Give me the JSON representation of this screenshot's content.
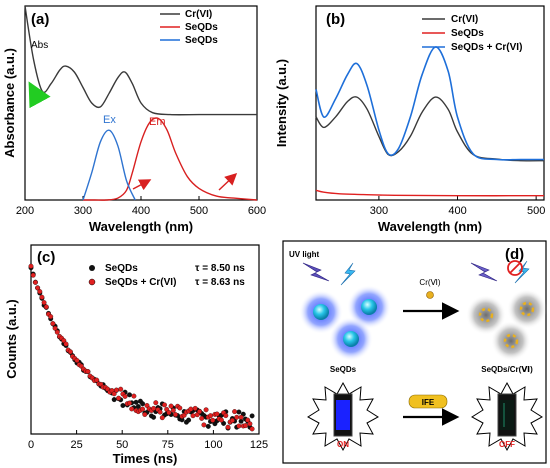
{
  "panels": {
    "a": {
      "label": "(a)",
      "abs_label": "Abs",
      "ex_label": "Ex",
      "em_label": "Em",
      "legend": [
        "Cr(VI)",
        "SeQDs",
        "SeQDs"
      ]
    },
    "b": {
      "label": "(b)",
      "legend": [
        "Cr(VI)",
        "SeQDs",
        "SeQDs + Cr(VI)"
      ]
    },
    "c": {
      "label": "(c)",
      "legend": [
        {
          "name": "SeQDs",
          "tau": "τ = 8.50 ns"
        },
        {
          "name": "SeQDs + Cr(VI)",
          "tau": "τ = 8.63 ns"
        }
      ]
    },
    "d": {
      "label": "(d)",
      "uv_label": "UV light",
      "cr_label": "Cr(Ⅵ)",
      "left_label": "SeQDs",
      "right_label": "SeQDs/Cr(Ⅵ)",
      "ife_label": "IFE",
      "on_label": "ON",
      "off_label": "OFF"
    }
  },
  "colors": {
    "cr": "#3a3a3a",
    "seqds": "#e02020",
    "mix": "#1e6fd9",
    "ex": "#2f74d0",
    "em": "#d82020"
  },
  "chart_data": [
    {
      "panel": "a",
      "type": "line",
      "xlabel": "Wavelength (nm)",
      "ylabel": "Absorbance (a.u.)",
      "xlim": [
        200,
        600
      ],
      "xticks": [
        200,
        300,
        400,
        500,
        600
      ],
      "series": [
        {
          "name": "Cr(VI)",
          "x": [
            200,
            215,
            230,
            245,
            260,
            270,
            285,
            300,
            315,
            330,
            345,
            360,
            372,
            385,
            400,
            420,
            450,
            500,
            550,
            600
          ],
          "y": [
            1.0,
            0.72,
            0.56,
            0.6,
            0.67,
            0.69,
            0.66,
            0.58,
            0.5,
            0.48,
            0.55,
            0.63,
            0.66,
            0.6,
            0.5,
            0.45,
            0.44,
            0.44,
            0.44,
            0.44
          ]
        },
        {
          "name": "SeQDs",
          "x": [
            300,
            320,
            340,
            360,
            375,
            385,
            400,
            415,
            430,
            445,
            460,
            480,
            500,
            530,
            560,
            600
          ],
          "y": [
            0.0,
            0.0,
            0.0,
            0.01,
            0.05,
            0.14,
            0.3,
            0.4,
            0.42,
            0.36,
            0.24,
            0.12,
            0.06,
            0.02,
            0.01,
            0.0
          ]
        },
        {
          "name": "SeQDs",
          "x": [
            300,
            315,
            330,
            345,
            360,
            375,
            390
          ],
          "y": [
            0.0,
            0.14,
            0.3,
            0.36,
            0.28,
            0.1,
            0.0
          ]
        }
      ]
    },
    {
      "panel": "b",
      "type": "line",
      "xlabel": "Wavelength (nm)",
      "ylabel": "Intensity (a.u.)",
      "xlim": [
        220,
        510
      ],
      "xticks": [
        300,
        400,
        500
      ],
      "series": [
        {
          "name": "Cr(VI)",
          "x": [
            220,
            230,
            245,
            260,
            272,
            285,
            300,
            312,
            325,
            340,
            355,
            372,
            388,
            400,
            420,
            450,
            480,
            510
          ],
          "y": [
            0.55,
            0.48,
            0.55,
            0.65,
            0.68,
            0.6,
            0.42,
            0.3,
            0.32,
            0.42,
            0.58,
            0.68,
            0.6,
            0.45,
            0.3,
            0.27,
            0.26,
            0.26
          ]
        },
        {
          "name": "SeQDs",
          "x": [
            220,
            230,
            250,
            280,
            320,
            400,
            510
          ],
          "y": [
            0.25,
            0.2,
            0.16,
            0.14,
            0.12,
            0.11,
            0.11
          ]
        },
        {
          "name": "SeQDs + Cr(VI)",
          "x": [
            220,
            230,
            245,
            260,
            272,
            285,
            300,
            312,
            325,
            340,
            355,
            372,
            388,
            400,
            420,
            450,
            480,
            510
          ],
          "y": [
            0.6,
            0.45,
            0.55,
            0.68,
            0.74,
            0.62,
            0.38,
            0.25,
            0.28,
            0.45,
            0.68,
            0.83,
            0.7,
            0.45,
            0.25,
            0.22,
            0.22,
            0.22
          ]
        }
      ]
    },
    {
      "panel": "c",
      "type": "scatter",
      "xlabel": "Times (ns)",
      "ylabel": "Counts (a.u.)",
      "xlim": [
        0,
        125
      ],
      "xticks": [
        0,
        25,
        50,
        75,
        100,
        125
      ],
      "series": [
        {
          "name": "SeQDs",
          "tau_ns": 8.5
        },
        {
          "name": "SeQDs + Cr(VI)",
          "tau_ns": 8.63
        }
      ]
    }
  ]
}
